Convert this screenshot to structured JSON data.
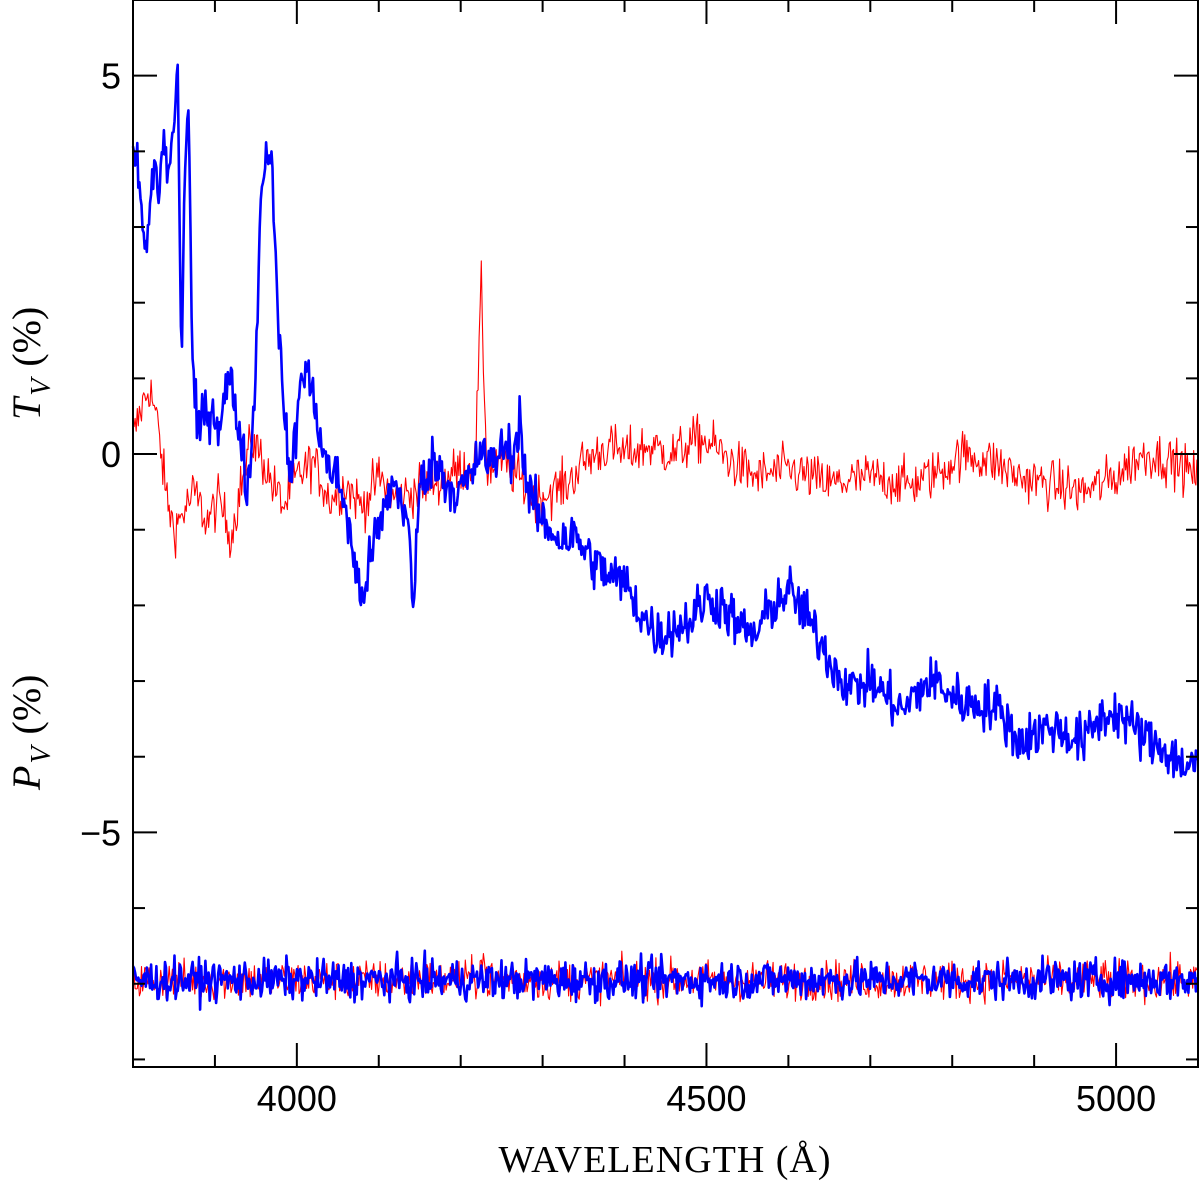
{
  "chart_data": {
    "type": "line",
    "xlabel": "WAVELENGTH (Å)",
    "ylabels": [
      {
        "symbol": "T",
        "subscript": "V",
        "unit": "(%)"
      },
      {
        "symbol": "P",
        "subscript": "V",
        "unit": "(%)"
      }
    ],
    "xlim": [
      3800,
      5100
    ],
    "ylim": [
      -8.1,
      6
    ],
    "x_ticks": [
      4000,
      4500,
      5000
    ],
    "y_ticks": [
      5,
      0,
      -5
    ],
    "y_tick_labels": [
      "5",
      "0",
      "−5"
    ],
    "series": [
      {
        "name": "upper-red",
        "color": "#ff0000",
        "style": "thin",
        "points": [
          [
            3800,
            0.2
          ],
          [
            3810,
            0.6
          ],
          [
            3820,
            0.9
          ],
          [
            3830,
            0.4
          ],
          [
            3840,
            -0.5
          ],
          [
            3850,
            -1.0
          ],
          [
            3860,
            -0.8
          ],
          [
            3875,
            -0.5
          ],
          [
            3890,
            -0.9
          ],
          [
            3905,
            -0.6
          ],
          [
            3920,
            -1.1
          ],
          [
            3930,
            -0.5
          ],
          [
            3945,
            0.2
          ],
          [
            3955,
            0.0
          ],
          [
            3970,
            -0.4
          ],
          [
            3985,
            -0.7
          ],
          [
            4000,
            -0.3
          ],
          [
            4020,
            -0.1
          ],
          [
            4040,
            -0.6
          ],
          [
            4060,
            -0.4
          ],
          [
            4080,
            -0.7
          ],
          [
            4100,
            -0.3
          ],
          [
            4120,
            -0.6
          ],
          [
            4140,
            -0.5
          ],
          [
            4160,
            -0.4
          ],
          [
            4180,
            -0.3
          ],
          [
            4200,
            -0.2
          ],
          [
            4218,
            -0.1
          ],
          [
            4225,
            2.2
          ],
          [
            4232,
            -0.2
          ],
          [
            4250,
            -0.1
          ],
          [
            4270,
            -0.3
          ],
          [
            4290,
            -0.6
          ],
          [
            4310,
            -0.5
          ],
          [
            4330,
            -0.4
          ],
          [
            4350,
            -0.1
          ],
          [
            4380,
            0.1
          ],
          [
            4400,
            0.0
          ],
          [
            4430,
            0.1
          ],
          [
            4460,
            0.0
          ],
          [
            4490,
            0.2
          ],
          [
            4510,
            0.1
          ],
          [
            4530,
            -0.1
          ],
          [
            4560,
            -0.3
          ],
          [
            4600,
            -0.2
          ],
          [
            4650,
            -0.4
          ],
          [
            4700,
            -0.3
          ],
          [
            4750,
            -0.4
          ],
          [
            4790,
            -0.2
          ],
          [
            4810,
            0.0
          ],
          [
            4850,
            -0.1
          ],
          [
            4880,
            -0.3
          ],
          [
            4920,
            -0.4
          ],
          [
            4960,
            -0.5
          ],
          [
            5000,
            -0.3
          ],
          [
            5020,
            -0.1
          ],
          [
            5040,
            0.0
          ],
          [
            5070,
            -0.1
          ],
          [
            5100,
            -0.3
          ]
        ]
      },
      {
        "name": "upper-blue",
        "color": "#0000ff",
        "style": "thick",
        "points": [
          [
            3800,
            4.0
          ],
          [
            3808,
            3.6
          ],
          [
            3814,
            2.6
          ],
          [
            3820,
            3.1
          ],
          [
            3826,
            3.9
          ],
          [
            3832,
            3.4
          ],
          [
            3838,
            4.3
          ],
          [
            3843,
            3.6
          ],
          [
            3848,
            4.1
          ],
          [
            3855,
            5.1
          ],
          [
            3859,
            0.9
          ],
          [
            3863,
            3.8
          ],
          [
            3868,
            4.7
          ],
          [
            3872,
            1.3
          ],
          [
            3878,
            0.3
          ],
          [
            3885,
            0.5
          ],
          [
            3895,
            0.6
          ],
          [
            3905,
            0.4
          ],
          [
            3912,
            0.8
          ],
          [
            3918,
            1.0
          ],
          [
            3925,
            0.6
          ],
          [
            3932,
            0.2
          ],
          [
            3940,
            -0.5
          ],
          [
            3948,
            0.6
          ],
          [
            3955,
            3.1
          ],
          [
            3962,
            4.1
          ],
          [
            3968,
            3.9
          ],
          [
            3972,
            3.3
          ],
          [
            3977,
            2.0
          ],
          [
            3982,
            0.8
          ],
          [
            3988,
            0.2
          ],
          [
            3993,
            -0.4
          ],
          [
            3998,
            0.2
          ],
          [
            4004,
            0.9
          ],
          [
            4010,
            1.2
          ],
          [
            4018,
            0.8
          ],
          [
            4025,
            0.5
          ],
          [
            4032,
            0.0
          ],
          [
            4040,
            -0.2
          ],
          [
            4048,
            -0.3
          ],
          [
            4058,
            -0.6
          ],
          [
            4068,
            -1.3
          ],
          [
            4078,
            -1.9
          ],
          [
            4086,
            -1.6
          ],
          [
            4095,
            -1.1
          ],
          [
            4104,
            -0.9
          ],
          [
            4112,
            -0.5
          ],
          [
            4120,
            -0.4
          ],
          [
            4128,
            -0.6
          ],
          [
            4136,
            -0.9
          ],
          [
            4142,
            -2.2
          ],
          [
            4148,
            -0.6
          ],
          [
            4155,
            -0.3
          ],
          [
            4165,
            -0.1
          ],
          [
            4175,
            -0.2
          ],
          [
            4185,
            -0.4
          ],
          [
            4195,
            -0.5
          ],
          [
            4205,
            -0.4
          ],
          [
            4215,
            -0.3
          ],
          [
            4225,
            0.1
          ],
          [
            4235,
            -0.2
          ],
          [
            4245,
            0.0
          ],
          [
            4255,
            0.1
          ],
          [
            4265,
            0.0
          ],
          [
            4272,
            0.5
          ],
          [
            4280,
            -0.4
          ],
          [
            4290,
            -0.7
          ],
          [
            4300,
            -0.9
          ],
          [
            4320,
            -1.1
          ],
          [
            4340,
            -1.1
          ],
          [
            4360,
            -1.4
          ],
          [
            4380,
            -1.6
          ],
          [
            4400,
            -1.7
          ],
          [
            4420,
            -2.1
          ],
          [
            4440,
            -2.4
          ],
          [
            4460,
            -2.3
          ],
          [
            4480,
            -2.2
          ],
          [
            4500,
            -1.9
          ],
          [
            4520,
            -2.0
          ],
          [
            4540,
            -2.3
          ],
          [
            4560,
            -2.4
          ],
          [
            4580,
            -2.0
          ],
          [
            4600,
            -1.8
          ],
          [
            4620,
            -2.1
          ],
          [
            4640,
            -2.5
          ],
          [
            4660,
            -2.9
          ],
          [
            4680,
            -3.1
          ],
          [
            4700,
            -3.0
          ],
          [
            4720,
            -3.2
          ],
          [
            4740,
            -3.4
          ],
          [
            4760,
            -3.1
          ],
          [
            4780,
            -3.0
          ],
          [
            4800,
            -3.2
          ],
          [
            4820,
            -3.3
          ],
          [
            4840,
            -3.3
          ],
          [
            4860,
            -3.4
          ],
          [
            4880,
            -3.8
          ],
          [
            4900,
            -3.7
          ],
          [
            4920,
            -3.6
          ],
          [
            4940,
            -3.7
          ],
          [
            4960,
            -3.8
          ],
          [
            4980,
            -3.5
          ],
          [
            5000,
            -3.4
          ],
          [
            5020,
            -3.6
          ],
          [
            5040,
            -3.8
          ],
          [
            5060,
            -3.9
          ],
          [
            5080,
            -4.1
          ],
          [
            5100,
            -4.1
          ]
        ]
      },
      {
        "name": "lower-red",
        "color": "#ff0000",
        "style": "thin",
        "points": [
          [
            3800,
            -6.95
          ],
          [
            4220,
            -6.95
          ],
          [
            4226,
            -6.6
          ],
          [
            4232,
            -6.95
          ],
          [
            5100,
            -6.95
          ]
        ]
      },
      {
        "name": "lower-blue",
        "color": "#0000ff",
        "style": "thick",
        "points": [
          [
            3800,
            -6.95
          ],
          [
            5100,
            -6.95
          ]
        ]
      }
    ]
  }
}
